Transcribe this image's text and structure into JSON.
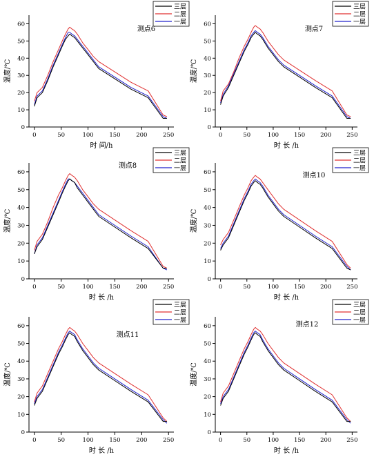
{
  "charts": [
    {
      "id": "p6",
      "label": "测点6",
      "xlabel": "时 间/h",
      "ylabel": "温度/℃",
      "legend": [
        "三层",
        "二层",
        "一层"
      ],
      "xticks": [
        0,
        50,
        100,
        150,
        200,
        250
      ],
      "yticks": [
        0,
        10,
        20,
        30,
        40,
        50,
        60
      ]
    },
    {
      "id": "p7",
      "label": "测点7",
      "xlabel": "时 长 /h",
      "ylabel": "温度/℃",
      "legend": [
        "三层",
        "二层",
        "一层"
      ],
      "xticks": [
        0,
        50,
        100,
        150,
        200,
        250
      ],
      "yticks": [
        0,
        10,
        20,
        30,
        40,
        50,
        60
      ]
    },
    {
      "id": "p8",
      "label": "测点8",
      "xlabel": "时 长 /h",
      "ylabel": "温度/℃",
      "legend": [
        "三层",
        "二层",
        "一层"
      ],
      "xticks": [
        0,
        50,
        100,
        150,
        200,
        250
      ],
      "yticks": [
        0,
        10,
        20,
        30,
        40,
        50,
        60
      ]
    },
    {
      "id": "p10",
      "label": "测点10",
      "xlabel": "时 长 /h",
      "ylabel": "温度/℃",
      "legend": [
        "三层",
        "二层",
        "一层"
      ],
      "xticks": [
        0,
        50,
        100,
        150,
        200,
        250
      ],
      "yticks": [
        0,
        10,
        20,
        30,
        40,
        50,
        60
      ]
    },
    {
      "id": "p11",
      "label": "测点11",
      "xlabel": "时 长 /h",
      "ylabel": "温度/℃",
      "legend": [
        "三层",
        "二层",
        "一层"
      ],
      "xticks": [
        0,
        50,
        100,
        150,
        200,
        250
      ],
      "yticks": [
        0,
        10,
        20,
        30,
        40,
        50,
        60
      ]
    },
    {
      "id": "p12",
      "label": "测点12",
      "xlabel": "时 长 /h",
      "ylabel": "温度/℃",
      "legend": [
        "三层",
        "二层",
        "一层"
      ],
      "xticks": [
        0,
        50,
        100,
        150,
        200,
        250
      ],
      "yticks": [
        0,
        10,
        20,
        30,
        40,
        50,
        60
      ]
    }
  ],
  "chart_data": [
    {
      "type": "line",
      "title": "测点6",
      "xlabel": "时 间/h",
      "ylabel": "温度/℃",
      "xlim": [
        -10,
        260
      ],
      "ylim": [
        0,
        65
      ],
      "grid": false,
      "legend_position": "top-right",
      "series": [
        {
          "name": "三层",
          "color": "#000000",
          "x": [
            0,
            5,
            15,
            25,
            35,
            45,
            52,
            58,
            63,
            66,
            70,
            75,
            80,
            90,
            100,
            110,
            120,
            150,
            180,
            212,
            240,
            247
          ],
          "y": [
            12,
            17,
            20,
            27,
            35,
            42,
            47,
            51,
            53,
            54,
            53,
            52,
            50,
            46,
            42,
            38,
            34,
            28,
            22,
            17,
            5,
            5
          ]
        },
        {
          "name": "二层",
          "color": "#e03030",
          "x": [
            0,
            5,
            15,
            25,
            35,
            45,
            52,
            58,
            63,
            66,
            70,
            75,
            80,
            90,
            100,
            110,
            120,
            150,
            180,
            212,
            240,
            247
          ],
          "y": [
            15,
            20,
            23,
            30,
            38,
            45,
            50,
            54,
            57,
            58,
            57,
            56,
            54,
            49,
            45,
            41,
            38,
            32,
            26,
            21,
            7,
            6
          ]
        },
        {
          "name": "一层",
          "color": "#2020cc",
          "x": [
            0,
            5,
            15,
            25,
            35,
            45,
            52,
            58,
            63,
            66,
            70,
            75,
            80,
            90,
            100,
            110,
            120,
            150,
            180,
            212,
            240,
            247
          ],
          "y": [
            13,
            18,
            21,
            28,
            36,
            43,
            48,
            52,
            55,
            55,
            54,
            53,
            51,
            47,
            43,
            39,
            35,
            29,
            23,
            18,
            6,
            5
          ]
        }
      ]
    },
    {
      "type": "line",
      "title": "测点7",
      "xlabel": "时 长 /h",
      "ylabel": "温度/℃",
      "xlim": [
        -10,
        260
      ],
      "ylim": [
        0,
        65
      ],
      "grid": false,
      "legend_position": "top-right",
      "series": [
        {
          "name": "三层",
          "color": "#000000",
          "x": [
            0,
            5,
            15,
            25,
            35,
            45,
            52,
            58,
            63,
            66,
            70,
            75,
            80,
            90,
            100,
            110,
            120,
            150,
            180,
            212,
            240,
            247
          ],
          "y": [
            13,
            18,
            23,
            30,
            37,
            44,
            48,
            52,
            54,
            55,
            54,
            53,
            51,
            46,
            42,
            38,
            35,
            29,
            23,
            17,
            5,
            5
          ]
        },
        {
          "name": "二层",
          "color": "#e03030",
          "x": [
            0,
            5,
            15,
            25,
            35,
            45,
            52,
            58,
            63,
            66,
            70,
            75,
            80,
            90,
            100,
            110,
            120,
            150,
            180,
            212,
            240,
            247
          ],
          "y": [
            15,
            21,
            25,
            32,
            40,
            47,
            51,
            55,
            58,
            59,
            58,
            57,
            55,
            50,
            46,
            42,
            39,
            33,
            27,
            21,
            7,
            6
          ]
        },
        {
          "name": "一层",
          "color": "#2020cc",
          "x": [
            0,
            5,
            15,
            25,
            35,
            45,
            52,
            58,
            63,
            66,
            70,
            75,
            80,
            90,
            100,
            110,
            120,
            150,
            180,
            212,
            240,
            247
          ],
          "y": [
            14,
            19,
            24,
            31,
            38,
            45,
            49,
            53,
            55,
            56,
            55,
            54,
            52,
            47,
            43,
            39,
            36,
            30,
            24,
            18,
            6,
            5
          ]
        }
      ]
    },
    {
      "type": "line",
      "title": "测点8",
      "xlabel": "时 长 /h",
      "ylabel": "温度/℃",
      "xlim": [
        -10,
        260
      ],
      "ylim": [
        0,
        65
      ],
      "grid": false,
      "legend_position": "top-right",
      "series": [
        {
          "name": "三层",
          "color": "#000000",
          "x": [
            0,
            5,
            15,
            25,
            35,
            45,
            52,
            58,
            63,
            66,
            70,
            75,
            80,
            90,
            100,
            110,
            120,
            150,
            180,
            212,
            240,
            247
          ],
          "y": [
            14,
            18,
            22,
            29,
            36,
            43,
            48,
            52,
            55,
            56,
            55,
            54,
            51,
            47,
            43,
            39,
            35,
            29,
            23,
            17,
            6,
            6
          ]
        },
        {
          "name": "二层",
          "color": "#e03030",
          "x": [
            0,
            5,
            15,
            25,
            35,
            45,
            52,
            58,
            63,
            66,
            70,
            75,
            80,
            90,
            100,
            110,
            120,
            150,
            180,
            212,
            240,
            247
          ],
          "y": [
            16,
            21,
            25,
            32,
            40,
            47,
            51,
            55,
            58,
            59,
            58,
            57,
            55,
            50,
            46,
            42,
            39,
            33,
            27,
            21,
            7,
            6
          ]
        },
        {
          "name": "一层",
          "color": "#2020cc",
          "x": [
            0,
            5,
            15,
            25,
            35,
            45,
            52,
            58,
            63,
            66,
            70,
            75,
            80,
            90,
            100,
            110,
            120,
            150,
            180,
            212,
            240,
            247
          ],
          "y": [
            14,
            19,
            23,
            30,
            37,
            44,
            49,
            53,
            56,
            56,
            55,
            54,
            52,
            48,
            44,
            40,
            36,
            30,
            24,
            18,
            6,
            5
          ]
        }
      ]
    },
    {
      "type": "line",
      "title": "测点10",
      "xlabel": "时 长 /h",
      "ylabel": "温度/℃",
      "xlim": [
        -10,
        260
      ],
      "ylim": [
        0,
        65
      ],
      "grid": false,
      "legend_position": "top-right",
      "series": [
        {
          "name": "三层",
          "color": "#000000",
          "x": [
            0,
            5,
            15,
            25,
            35,
            45,
            52,
            58,
            63,
            66,
            70,
            75,
            80,
            90,
            100,
            110,
            120,
            150,
            180,
            212,
            240,
            247
          ],
          "y": [
            16,
            19,
            23,
            30,
            37,
            44,
            48,
            52,
            54,
            55,
            54,
            53,
            51,
            46,
            42,
            38,
            35,
            29,
            23,
            17,
            6,
            5
          ]
        },
        {
          "name": "二层",
          "color": "#e03030",
          "x": [
            0,
            5,
            15,
            25,
            35,
            45,
            52,
            58,
            63,
            66,
            70,
            75,
            80,
            90,
            100,
            110,
            120,
            150,
            180,
            212,
            240,
            247
          ],
          "y": [
            19,
            22,
            26,
            33,
            40,
            47,
            51,
            55,
            57,
            58,
            57,
            56,
            54,
            50,
            46,
            42,
            39,
            33,
            27,
            21,
            8,
            6
          ]
        },
        {
          "name": "一层",
          "color": "#2020cc",
          "x": [
            0,
            5,
            15,
            25,
            35,
            45,
            52,
            58,
            63,
            66,
            70,
            75,
            80,
            90,
            100,
            110,
            120,
            150,
            180,
            212,
            240,
            247
          ],
          "y": [
            17,
            20,
            24,
            31,
            38,
            45,
            49,
            53,
            55,
            56,
            55,
            54,
            52,
            47,
            43,
            39,
            36,
            30,
            24,
            18,
            7,
            5
          ]
        }
      ]
    },
    {
      "type": "line",
      "title": "测点11",
      "xlabel": "时 长 /h",
      "ylabel": "温度/℃",
      "xlim": [
        -10,
        260
      ],
      "ylim": [
        0,
        65
      ],
      "grid": false,
      "legend_position": "top-right",
      "series": [
        {
          "name": "三层",
          "color": "#000000",
          "x": [
            0,
            5,
            15,
            25,
            35,
            45,
            52,
            58,
            63,
            66,
            70,
            75,
            80,
            90,
            100,
            110,
            120,
            150,
            180,
            212,
            240,
            247
          ],
          "y": [
            15,
            19,
            23,
            30,
            37,
            44,
            48,
            52,
            55,
            56,
            55,
            54,
            51,
            46,
            42,
            38,
            35,
            29,
            23,
            17,
            6,
            6
          ]
        },
        {
          "name": "二层",
          "color": "#e03030",
          "x": [
            0,
            5,
            15,
            25,
            35,
            45,
            52,
            58,
            63,
            66,
            70,
            75,
            80,
            90,
            100,
            110,
            120,
            150,
            180,
            212,
            240,
            247
          ],
          "y": [
            17,
            22,
            26,
            33,
            40,
            47,
            51,
            55,
            58,
            59,
            58,
            57,
            55,
            50,
            46,
            42,
            39,
            33,
            27,
            21,
            8,
            6
          ]
        },
        {
          "name": "一层",
          "color": "#2020cc",
          "x": [
            0,
            5,
            15,
            25,
            35,
            45,
            52,
            58,
            63,
            66,
            70,
            75,
            80,
            90,
            100,
            110,
            120,
            150,
            180,
            212,
            240,
            247
          ],
          "y": [
            16,
            20,
            24,
            31,
            38,
            45,
            49,
            53,
            56,
            57,
            56,
            55,
            52,
            47,
            43,
            39,
            36,
            30,
            24,
            18,
            7,
            5
          ]
        }
      ]
    },
    {
      "type": "line",
      "title": "测点12",
      "xlabel": "时 长 /h",
      "ylabel": "温度/℃",
      "xlim": [
        -10,
        260
      ],
      "ylim": [
        0,
        65
      ],
      "grid": false,
      "legend_position": "top-right",
      "series": [
        {
          "name": "三层",
          "color": "#000000",
          "x": [
            0,
            5,
            15,
            25,
            35,
            45,
            52,
            58,
            63,
            66,
            70,
            75,
            80,
            90,
            100,
            110,
            120,
            150,
            180,
            212,
            240,
            247
          ],
          "y": [
            15,
            19,
            23,
            30,
            37,
            44,
            48,
            52,
            55,
            56,
            55,
            54,
            51,
            46,
            42,
            38,
            35,
            29,
            23,
            17,
            6,
            6
          ]
        },
        {
          "name": "二层",
          "color": "#e03030",
          "x": [
            0,
            5,
            15,
            25,
            35,
            45,
            52,
            58,
            63,
            66,
            70,
            75,
            80,
            90,
            100,
            110,
            120,
            150,
            180,
            212,
            240,
            247
          ],
          "y": [
            17,
            22,
            26,
            33,
            40,
            47,
            51,
            55,
            58,
            59,
            58,
            57,
            55,
            50,
            46,
            42,
            39,
            33,
            27,
            21,
            8,
            6
          ]
        },
        {
          "name": "一层",
          "color": "#2020cc",
          "x": [
            0,
            5,
            15,
            25,
            35,
            45,
            52,
            58,
            63,
            66,
            70,
            75,
            80,
            90,
            100,
            110,
            120,
            150,
            180,
            212,
            240,
            247
          ],
          "y": [
            16,
            20,
            24,
            31,
            38,
            45,
            49,
            53,
            56,
            57,
            56,
            55,
            52,
            47,
            43,
            39,
            36,
            30,
            24,
            18,
            7,
            5
          ]
        }
      ]
    }
  ]
}
